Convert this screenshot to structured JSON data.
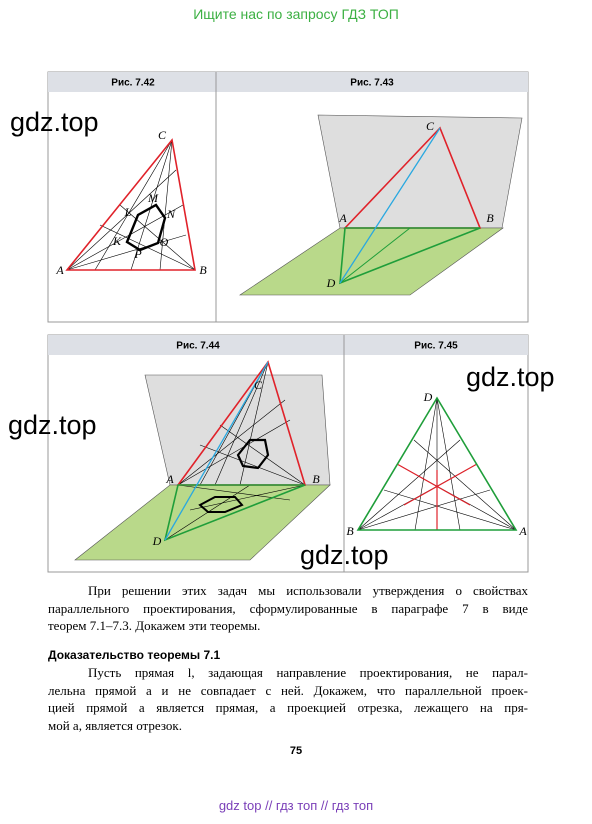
{
  "header": {
    "text": "Ищите нас по запросу ГДЗ ТОП"
  },
  "figures": [
    {
      "caption": "Рис. 7.42",
      "labels": [
        "C",
        "M",
        "L",
        "N",
        "K",
        "O",
        "P",
        "A",
        "B"
      ]
    },
    {
      "caption": "Рис. 7.43",
      "labels": [
        "C",
        "A",
        "B",
        "D"
      ]
    },
    {
      "caption": "Рис. 7.44",
      "labels": [
        "C",
        "A",
        "B",
        "D"
      ]
    },
    {
      "caption": "Рис. 7.45",
      "labels": [
        "D",
        "B",
        "A"
      ]
    }
  ],
  "watermarks": [
    "gdz.top",
    "gdz.top",
    "gdz.top",
    "gdz.top"
  ],
  "paragraph_1": {
    "lines": [
      "При решении этих задач мы использовали утверждения о свойствах",
      "параллельного проектирования, сформулированные в параграфе 7 в виде",
      "теорем 7.1–7.3. Докажем эти теоремы."
    ]
  },
  "heading": "Доказательство теоремы 7.1",
  "paragraph_2": {
    "lines": [
      "Пусть прямая l, задающая направление проектирования, не парал-",
      "лельна прямой a и не совпадает с ней. Докажем, что параллельной проек-",
      "цией прямой a является прямая, а проекцией отрезка, лежащего на пря-",
      "мой a, является отрезок."
    ]
  },
  "page_number": "75",
  "footer": "gdz top // гдз топ // гдз топ"
}
